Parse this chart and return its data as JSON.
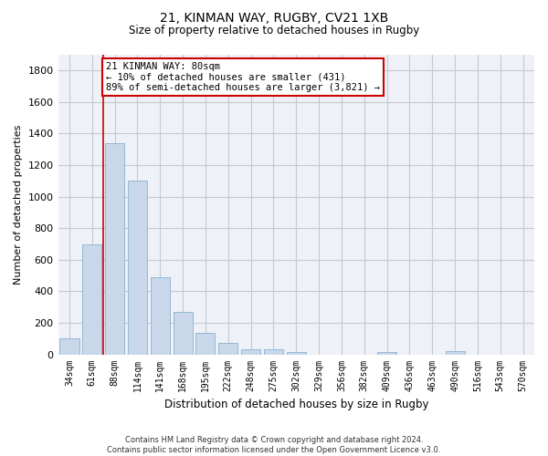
{
  "title_line1": "21, KINMAN WAY, RUGBY, CV21 1XB",
  "title_line2": "Size of property relative to detached houses in Rugby",
  "xlabel": "Distribution of detached houses by size in Rugby",
  "ylabel": "Number of detached properties",
  "categories": [
    "34sqm",
    "61sqm",
    "88sqm",
    "114sqm",
    "141sqm",
    "168sqm",
    "195sqm",
    "222sqm",
    "248sqm",
    "275sqm",
    "302sqm",
    "329sqm",
    "356sqm",
    "382sqm",
    "409sqm",
    "436sqm",
    "463sqm",
    "490sqm",
    "516sqm",
    "543sqm",
    "570sqm"
  ],
  "values": [
    100,
    700,
    1340,
    1100,
    490,
    270,
    135,
    70,
    33,
    33,
    15,
    0,
    0,
    0,
    15,
    0,
    0,
    20,
    0,
    0,
    0
  ],
  "bar_color": "#c8d8ea",
  "bar_edge_color": "#8ab0cc",
  "vline_x": 1.5,
  "vline_color": "#cc0000",
  "annotation_text": "21 KINMAN WAY: 80sqm\n← 10% of detached houses are smaller (431)\n89% of semi-detached houses are larger (3,821) →",
  "annotation_box_color": "#ffffff",
  "annotation_box_edge": "#cc0000",
  "ylim": [
    0,
    1900
  ],
  "yticks": [
    0,
    200,
    400,
    600,
    800,
    1000,
    1200,
    1400,
    1600,
    1800
  ],
  "footnote": "Contains HM Land Registry data © Crown copyright and database right 2024.\nContains public sector information licensed under the Open Government Licence v3.0.",
  "grid_color": "#c8c8d0",
  "background_color": "#eef2f8"
}
